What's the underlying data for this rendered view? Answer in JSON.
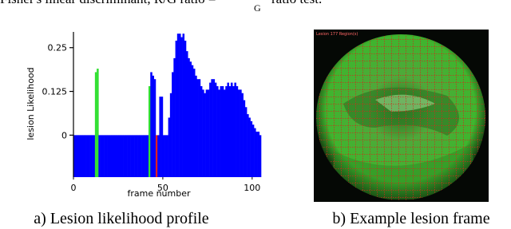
{
  "header": {
    "text": "Fisher's linear discriminant, R/G ratio =",
    "fraction_denominator": "G",
    "text_after": "ratio test."
  },
  "chart_data": {
    "type": "bar",
    "xlabel": "frame number",
    "ylabel": "lesion Likelihood",
    "values": [
      0,
      0,
      0,
      0,
      0,
      0,
      0,
      0,
      0,
      0,
      0,
      0,
      0.18,
      0.19,
      0,
      0,
      0,
      0,
      0,
      0,
      0,
      0,
      0,
      0,
      0,
      0,
      0,
      0,
      0,
      0,
      0,
      0,
      0,
      0,
      0,
      0,
      0,
      0,
      0,
      0,
      0,
      0,
      0.14,
      0.18,
      0.17,
      0.16,
      0,
      0,
      0.11,
      0.11,
      0,
      0,
      0,
      0.05,
      0.12,
      0.18,
      0.22,
      0.27,
      0.29,
      0.29,
      0.28,
      0.29,
      0.27,
      0.24,
      0.22,
      0.21,
      0.2,
      0.19,
      0.17,
      0.16,
      0.16,
      0.14,
      0.13,
      0.12,
      0.13,
      0.13,
      0.15,
      0.16,
      0.16,
      0.15,
      0.14,
      0.13,
      0.14,
      0.14,
      0.13,
      0.14,
      0.15,
      0.14,
      0.15,
      0.14,
      0.15,
      0.14,
      0.13,
      0.13,
      0.12,
      0.1,
      0.08,
      0.06,
      0.05,
      0.04,
      0.03,
      0.02,
      0.01,
      0.01,
      0
    ],
    "color": "#0000ff",
    "highlights": [
      {
        "index": 12,
        "color": "#33e033"
      },
      {
        "index": 13,
        "color": "#33e033"
      },
      {
        "index": 42,
        "color": "#33e033"
      },
      {
        "index": 46,
        "color": "#e02020"
      }
    ],
    "xlim": [
      0,
      105
    ],
    "xticks": [
      0,
      50,
      100
    ],
    "ylim": [
      -0.12,
      0.295
    ],
    "yticks": [
      0,
      0.125,
      0.25
    ]
  },
  "image": {
    "label": "Lesion 177 Region(s)"
  },
  "captions": [
    "a) Lesion likelihood profile",
    "b) Example lesion frame"
  ]
}
